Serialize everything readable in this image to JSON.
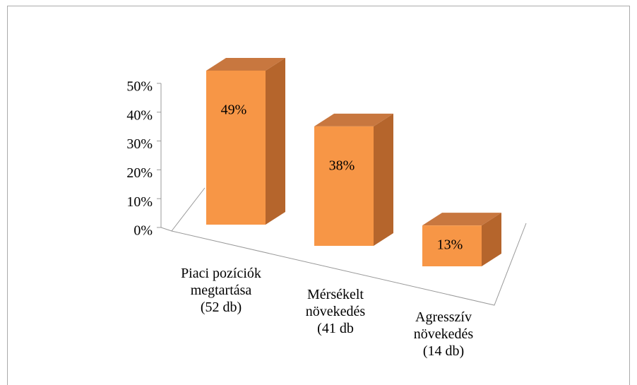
{
  "chart_data": {
    "type": "bar",
    "categories": [
      "Piaci pozíciók\nmegtartása\n(52 db)",
      "Mérsékelt\nnövekedés\n(41 db",
      "Agresszív\nnövekedés\n(14 db)"
    ],
    "values": [
      49,
      38,
      13
    ],
    "value_labels": [
      "49%",
      "38%",
      "13%"
    ],
    "color": "#f79646",
    "ylim": [
      0,
      50
    ],
    "yticks": [
      {
        "value": 0,
        "label": "0%"
      },
      {
        "value": 10,
        "label": "10%"
      },
      {
        "value": 20,
        "label": "20%"
      },
      {
        "value": 30,
        "label": "30%"
      },
      {
        "value": 40,
        "label": "40%"
      },
      {
        "value": 50,
        "label": "50%"
      }
    ]
  }
}
